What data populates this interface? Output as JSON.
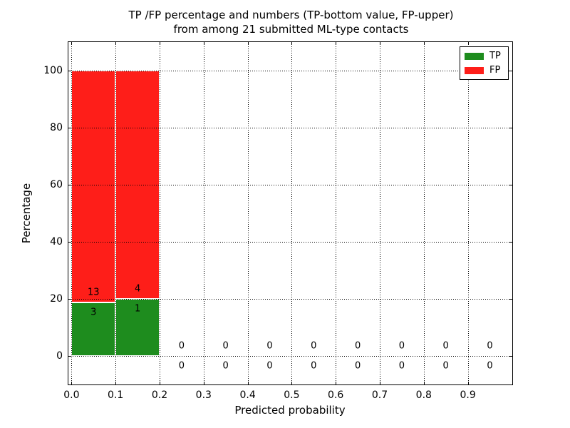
{
  "title": {
    "line1": "TP /FP percentage and numbers (TP-bottom value, FP-upper)",
    "line2": "from among 21 submitted ML-type contacts"
  },
  "axes": {
    "xlabel": "Predicted probability",
    "ylabel": "Percentage",
    "x_tick_labels": [
      "0.0",
      "0.1",
      "0.2",
      "0.3",
      "0.4",
      "0.5",
      "0.6",
      "0.7",
      "0.8",
      "0.9"
    ],
    "y_tick_labels": [
      "0",
      "20",
      "40",
      "60",
      "80",
      "100"
    ],
    "xlim": [
      -0.007,
      1.0
    ],
    "ylim": [
      -10,
      110
    ],
    "grid": true,
    "grid_style": "dotted"
  },
  "legend": {
    "position": "upper right",
    "entries": [
      {
        "label": "TP",
        "color": "#1e8c1e"
      },
      {
        "label": "FP",
        "color": "#fe1e19"
      }
    ]
  },
  "colors": {
    "tp": "#1e8c1e",
    "fp": "#fe1e19",
    "grid": "#000000",
    "background": "#ffffff",
    "bar_edge": "#ffffff"
  },
  "chart_data": {
    "type": "bar",
    "stacked": true,
    "title": "TP /FP percentage and numbers (TP-bottom value, FP-upper) from among 21 submitted ML-type contacts",
    "xlabel": "Predicted probability",
    "ylabel": "Percentage",
    "total_submitted": 21,
    "bin_width": 0.1,
    "series_names": [
      "TP",
      "FP"
    ],
    "bins": [
      {
        "x0": 0.0,
        "x1": 0.1,
        "tp_count": 3,
        "fp_count": 13,
        "tp_pct": 18.75,
        "fp_pct": 81.25
      },
      {
        "x0": 0.1,
        "x1": 0.2,
        "tp_count": 1,
        "fp_count": 4,
        "tp_pct": 20.0,
        "fp_pct": 80.0
      },
      {
        "x0": 0.2,
        "x1": 0.3,
        "tp_count": 0,
        "fp_count": 0,
        "tp_pct": 0,
        "fp_pct": 0
      },
      {
        "x0": 0.3,
        "x1": 0.4,
        "tp_count": 0,
        "fp_count": 0,
        "tp_pct": 0,
        "fp_pct": 0
      },
      {
        "x0": 0.4,
        "x1": 0.5,
        "tp_count": 0,
        "fp_count": 0,
        "tp_pct": 0,
        "fp_pct": 0
      },
      {
        "x0": 0.5,
        "x1": 0.6,
        "tp_count": 0,
        "fp_count": 0,
        "tp_pct": 0,
        "fp_pct": 0
      },
      {
        "x0": 0.6,
        "x1": 0.7,
        "tp_count": 0,
        "fp_count": 0,
        "tp_pct": 0,
        "fp_pct": 0
      },
      {
        "x0": 0.7,
        "x1": 0.8,
        "tp_count": 0,
        "fp_count": 0,
        "tp_pct": 0,
        "fp_pct": 0
      },
      {
        "x0": 0.8,
        "x1": 0.9,
        "tp_count": 0,
        "fp_count": 0,
        "tp_pct": 0,
        "fp_pct": 0
      },
      {
        "x0": 0.9,
        "x1": 1.0,
        "tp_count": 0,
        "fp_count": 0,
        "tp_pct": 0,
        "fp_pct": 0
      }
    ]
  }
}
